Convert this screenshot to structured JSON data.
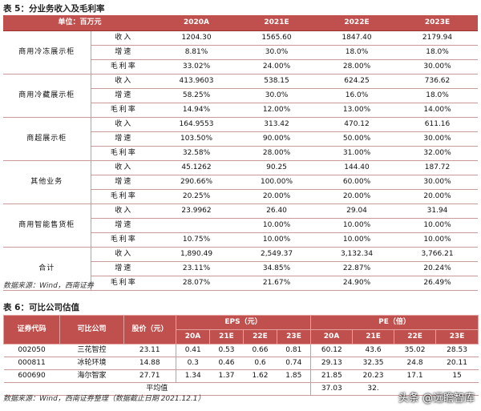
{
  "table1": {
    "title": "表 5：分业务收入及毛利率",
    "header": [
      "单位：百万元",
      "2020A",
      "2021E",
      "2022E",
      "2023E"
    ],
    "groups": [
      {
        "name": "商用冷冻展示柜",
        "rows": [
          {
            "metric": "收入",
            "values": [
              "1204.30",
              "1565.60",
              "1847.40",
              "2179.94"
            ]
          },
          {
            "metric": "增速",
            "values": [
              "8.81%",
              "30.0%",
              "18.0%",
              "18.0%"
            ]
          },
          {
            "metric": "毛利率",
            "values": [
              "33.02%",
              "24.00%",
              "28.00%",
              "30.00%"
            ]
          }
        ]
      },
      {
        "name": "商用冷藏展示柜",
        "rows": [
          {
            "metric": "收入",
            "values": [
              "413.9603",
              "538.15",
              "624.25",
              "736.62"
            ]
          },
          {
            "metric": "增速",
            "values": [
              "58.25%",
              "30.0%",
              "16.0%",
              "18.0%"
            ]
          },
          {
            "metric": "毛利率",
            "values": [
              "14.94%",
              "12.00%",
              "13.00%",
              "14.00%"
            ]
          }
        ]
      },
      {
        "name": "商超展示柜",
        "rows": [
          {
            "metric": "收入",
            "values": [
              "164.9553",
              "313.42",
              "470.12",
              "611.16"
            ]
          },
          {
            "metric": "增速",
            "values": [
              "103.50%",
              "90.00%",
              "50.00%",
              "30.00%"
            ]
          },
          {
            "metric": "毛利率",
            "values": [
              "32.58%",
              "28.00%",
              "31.00%",
              "32.00%"
            ]
          }
        ]
      },
      {
        "name": "其他业务",
        "rows": [
          {
            "metric": "收入",
            "values": [
              "45.1262",
              "90.25",
              "144.40",
              "187.72"
            ]
          },
          {
            "metric": "增速",
            "values": [
              "290.66%",
              "100.00%",
              "60.00%",
              "30.00%"
            ]
          },
          {
            "metric": "毛利率",
            "values": [
              "20.25%",
              "20.00%",
              "20.00%",
              "20.00%"
            ]
          }
        ]
      },
      {
        "name": "商用智能售货柜",
        "rows": [
          {
            "metric": "收入",
            "values": [
              "23.9962",
              "26.40",
              "29.04",
              "31.94"
            ]
          },
          {
            "metric": "增速",
            "values": [
              "",
              "10.00%",
              "10.00%",
              "10.00%"
            ]
          },
          {
            "metric": "毛利率",
            "values": [
              "10.75%",
              "10.00%",
              "10.00%",
              "10.00%"
            ]
          }
        ]
      },
      {
        "name": "合计",
        "rows": [
          {
            "metric": "收入",
            "values": [
              "1,890.49",
              "2,549.37",
              "3,132.34",
              "3,766.21"
            ]
          },
          {
            "metric": "增速",
            "values": [
              "23.11%",
              "34.85%",
              "22.87%",
              "20.24%"
            ]
          },
          {
            "metric": "毛利率",
            "values": [
              "28.07%",
              "21.67%",
              "24.90%",
              "26.49%"
            ]
          }
        ]
      }
    ],
    "source": "数据来源：Wind，西南证券"
  },
  "table2": {
    "title": "表 6：可比公司估值",
    "header": {
      "code": "证券代码",
      "company": "可比公司",
      "price": "股价（元）",
      "eps": "EPS（元）",
      "pe": "PE（倍）",
      "years": [
        "20A",
        "21E",
        "22E",
        "23E"
      ]
    },
    "rows": [
      {
        "code": "002050",
        "company": "三花智控",
        "price": "23.11",
        "eps": [
          "0.41",
          "0.53",
          "0.66",
          "0.81"
        ],
        "pe": [
          "60.12",
          "43.6",
          "35.02",
          "28.53"
        ]
      },
      {
        "code": "000811",
        "company": "冰轮环境",
        "price": "14.88",
        "eps": [
          "0.3",
          "0.46",
          "0.6",
          "0.74"
        ],
        "pe": [
          "29.13",
          "32.35",
          "24.8",
          "20.11"
        ]
      },
      {
        "code": "600690",
        "company": "海尔智家",
        "price": "27.71",
        "eps": [
          "1.34",
          "1.37",
          "1.62",
          "1.85"
        ],
        "pe": [
          "21.85",
          "20.23",
          "17.1",
          "15"
        ]
      }
    ],
    "average": {
      "label": "平均值",
      "pe": [
        "37.03",
        "32.",
        "",
        ""
      ]
    },
    "source": "数据来源：Wind，西南证券整理（数据截止日期 2021.12.1）"
  },
  "watermark": "头条 @远瞻智库"
}
